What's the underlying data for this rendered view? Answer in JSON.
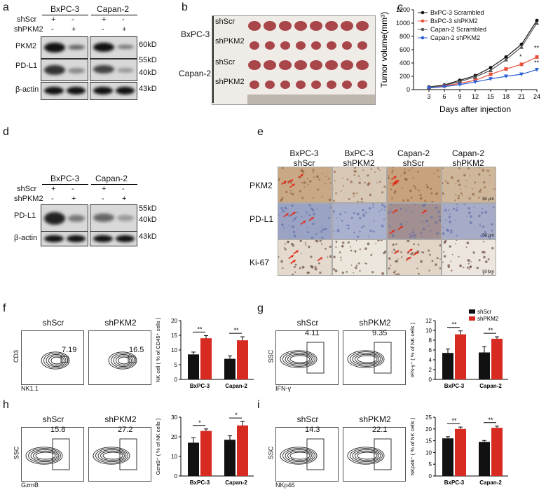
{
  "a": {
    "letter": "a",
    "groups": [
      "BxPC-3",
      "Capan-2"
    ],
    "rows": [
      "shScr",
      "shPKM2"
    ],
    "row_signs": [
      [
        "+",
        "-",
        "+",
        "-"
      ],
      [
        "-",
        "+",
        "-",
        "+"
      ]
    ],
    "blots": [
      "PKM2",
      "PD-L1",
      "β-actin"
    ],
    "kd": [
      "60kD",
      "55kD",
      "40kD",
      "43kD"
    ]
  },
  "b": {
    "letter": "b",
    "lines": [
      "BxPC-3",
      "Capan-2"
    ],
    "groups": [
      "shScr",
      "shPKM2",
      "shScr",
      "shPKM2"
    ]
  },
  "c": {
    "letter": "c",
    "chart_data": {
      "type": "line",
      "xlabel": "Days after injection",
      "ylabel": "Tumor volume(mm³)",
      "x": [
        3,
        6,
        9,
        12,
        15,
        18,
        21,
        24
      ],
      "ylim": [
        0,
        1200
      ],
      "yticks": [
        0,
        200,
        400,
        600,
        800,
        1000,
        1200
      ],
      "legend": "top-left",
      "series": [
        {
          "name": "BxPC-3 Scrambled",
          "color": "#111111",
          "marker": "circle",
          "values": [
            40,
            70,
            140,
            210,
            330,
            490,
            680,
            1040
          ]
        },
        {
          "name": "BxPC-3 shPKM2",
          "color": "#e8503a",
          "marker": "square",
          "values": [
            30,
            55,
            95,
            140,
            230,
            310,
            380,
            490
          ]
        },
        {
          "name": "Capan-2 Scrambled",
          "color": "#555555",
          "marker": "triangle-up",
          "values": [
            35,
            65,
            120,
            190,
            290,
            450,
            640,
            1000
          ]
        },
        {
          "name": "Capan-2 shPKM2",
          "color": "#2a5fd6",
          "marker": "triangle-down",
          "values": [
            25,
            45,
            75,
            115,
            160,
            200,
            230,
            300
          ]
        }
      ],
      "annotations": [
        "**",
        "*",
        "**"
      ]
    }
  },
  "d": {
    "letter": "d",
    "groups": [
      "BxPC-3",
      "Capan-2"
    ],
    "rows": [
      "shScr",
      "shPKM2"
    ],
    "row_signs": [
      [
        "+",
        "-",
        "+",
        "-"
      ],
      [
        "-",
        "+",
        "-",
        "+"
      ]
    ],
    "blots": [
      "PD-L1",
      "β-actin"
    ],
    "kd": [
      "55kD",
      "40kD",
      "43kD"
    ]
  },
  "e": {
    "letter": "e",
    "columns": [
      [
        "BxPC-3",
        "shScr"
      ],
      [
        "BxPC-3",
        "shPKM2"
      ],
      [
        "Capan-2",
        "shScr"
      ],
      [
        "Capan-2",
        "shPKM2"
      ]
    ],
    "rows": [
      "PKM2",
      "PD-L1",
      "Ki-67"
    ],
    "scale": "50 μm"
  },
  "f": {
    "letter": "f",
    "conditions": [
      "shScr",
      "shPKM2"
    ],
    "gates": [
      "7.19",
      "16.5"
    ],
    "xaxis": "NK1.1",
    "yaxis": "CD3",
    "chart_data": {
      "type": "bar",
      "categories": [
        "BxPC-3",
        "Capan-2"
      ],
      "ylabel": "NK cell ( % of CD45⁺ cells )",
      "ylim": [
        0,
        20
      ],
      "yticks": [
        0,
        5,
        10,
        15,
        20
      ],
      "series": [
        {
          "name": "shScr",
          "color": "#111111",
          "values": [
            8.5,
            7.0
          ],
          "err": [
            0.8,
            1.0
          ]
        },
        {
          "name": "shPKM2",
          "color": "#d72b22",
          "values": [
            14.0,
            13.3
          ],
          "err": [
            0.9,
            1.2
          ]
        }
      ],
      "sig": [
        "**",
        "**"
      ]
    }
  },
  "g": {
    "letter": "g",
    "conditions": [
      "shScr",
      "shPKM2"
    ],
    "gates": [
      "4.11",
      "9.35"
    ],
    "xaxis": "IFN-γ",
    "yaxis": "SSC",
    "chart_data": {
      "type": "bar",
      "categories": [
        "BxPC-3",
        "Capan-2"
      ],
      "ylabel": "IFN-γ⁺ ( % of NK cells )",
      "ylim": [
        0,
        12
      ],
      "yticks": [
        0,
        2,
        4,
        6,
        8,
        10,
        12
      ],
      "legend": "top-right",
      "series": [
        {
          "name": "shScr",
          "color": "#111111",
          "values": [
            5.4,
            5.5
          ],
          "err": [
            0.8,
            1.2
          ]
        },
        {
          "name": "shPKM2",
          "color": "#d72b22",
          "values": [
            9.2,
            8.3
          ],
          "err": [
            0.7,
            0.4
          ]
        }
      ],
      "sig": [
        "**",
        "**"
      ]
    }
  },
  "h": {
    "letter": "h",
    "conditions": [
      "shScr",
      "shPKM2"
    ],
    "gates": [
      "15.8",
      "27.2"
    ],
    "xaxis": "GzmB",
    "yaxis": "SSC",
    "chart_data": {
      "type": "bar",
      "categories": [
        "BxPC-3",
        "Capan-2"
      ],
      "ylabel": "GzmB⁺ ( % of NK cells )",
      "ylim": [
        0,
        30
      ],
      "yticks": [
        0,
        10,
        20,
        30
      ],
      "series": [
        {
          "name": "shScr",
          "color": "#111111",
          "values": [
            17.0,
            18.5
          ],
          "err": [
            2.5,
            2.0
          ]
        },
        {
          "name": "shPKM2",
          "color": "#d72b22",
          "values": [
            23.0,
            25.8
          ],
          "err": [
            1.0,
            2.0
          ]
        }
      ],
      "sig": [
        "*",
        "*"
      ]
    }
  },
  "i": {
    "letter": "i",
    "conditions": [
      "shScr",
      "shPKM2"
    ],
    "gates": [
      "14.3",
      "22.1"
    ],
    "xaxis": "NKp46",
    "yaxis": "SSC",
    "chart_data": {
      "type": "bar",
      "categories": [
        "BxPC-3",
        "Capan-2"
      ],
      "ylabel": "NKp46⁺ ( % of NK cells )",
      "ylim": [
        0,
        25
      ],
      "yticks": [
        0,
        5,
        10,
        15,
        20,
        25
      ],
      "series": [
        {
          "name": "shScr",
          "color": "#111111",
          "values": [
            16.0,
            14.5
          ],
          "err": [
            0.7,
            0.6
          ]
        },
        {
          "name": "shPKM2",
          "color": "#d72b22",
          "values": [
            20.0,
            20.5
          ],
          "err": [
            0.8,
            0.7
          ]
        }
      ],
      "sig": [
        "**",
        "**"
      ]
    }
  }
}
